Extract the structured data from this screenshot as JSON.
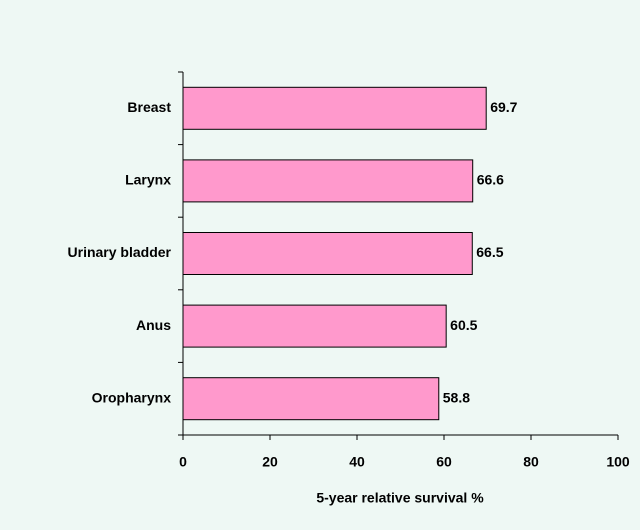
{
  "chart_data": {
    "type": "hbar",
    "categories": [
      "Breast",
      "Larynx",
      "Urinary bladder",
      "Anus",
      "Oropharynx"
    ],
    "values": [
      69.7,
      66.6,
      66.5,
      60.5,
      58.8
    ],
    "color": "#ff99cc",
    "xlabel": "5-year relative survival %",
    "xlim": [
      0,
      100
    ],
    "xticks": [
      0,
      20,
      40,
      60,
      80,
      100
    ],
    "grid": false
  }
}
